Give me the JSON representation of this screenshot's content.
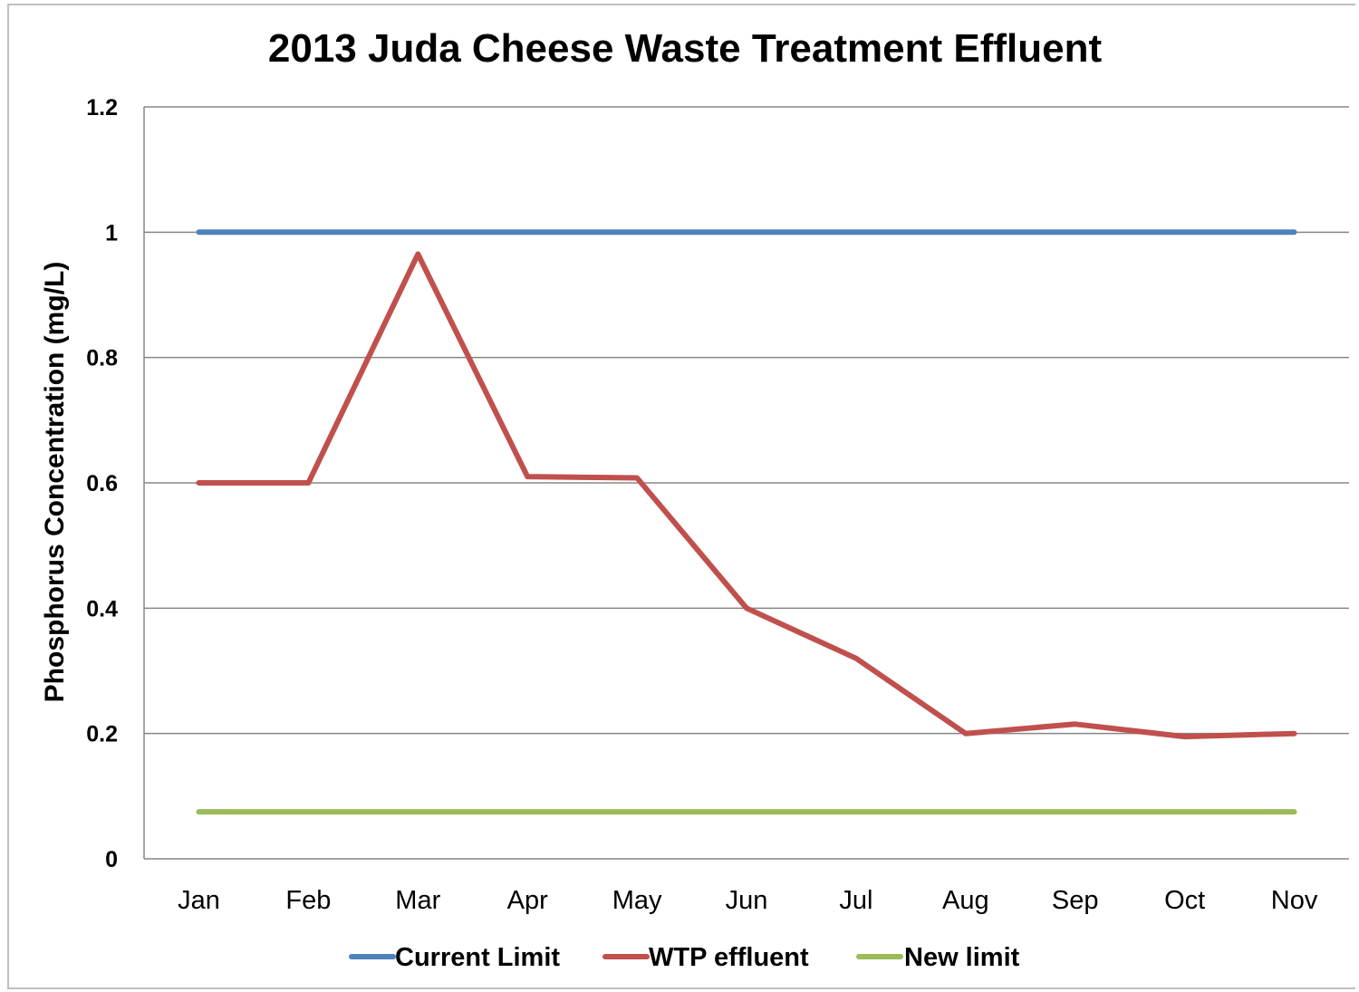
{
  "chart_data": {
    "type": "line",
    "title": "2013 Juda Cheese Waste Treatment Effluent",
    "xlabel": "",
    "ylabel": "Phosphorus Concentration (mg/L)",
    "ylim": [
      0,
      1.2
    ],
    "yticks": [
      "0",
      "0.2",
      "0.4",
      "0.6",
      "0.8",
      "1",
      "1.2"
    ],
    "categories": [
      "Jan",
      "Feb",
      "Mar",
      "Apr",
      "May",
      "Jun",
      "Jul",
      "Aug",
      "Sep",
      "Oct",
      "Nov"
    ],
    "grid": true,
    "legend_position": "bottom",
    "series": [
      {
        "name": "Current Limit",
        "color": "#4F81BD",
        "values": [
          1,
          1,
          1,
          1,
          1,
          1,
          1,
          1,
          1,
          1,
          1
        ]
      },
      {
        "name": "WTP effluent",
        "color": "#C0504D",
        "values": [
          0.6,
          0.6,
          0.965,
          0.61,
          0.608,
          0.4,
          0.32,
          0.2,
          0.215,
          0.195,
          0.2
        ]
      },
      {
        "name": "New limit",
        "color": "#9BBB59",
        "values": [
          0.075,
          0.075,
          0.075,
          0.075,
          0.075,
          0.075,
          0.075,
          0.075,
          0.075,
          0.075,
          0.075
        ]
      }
    ]
  }
}
